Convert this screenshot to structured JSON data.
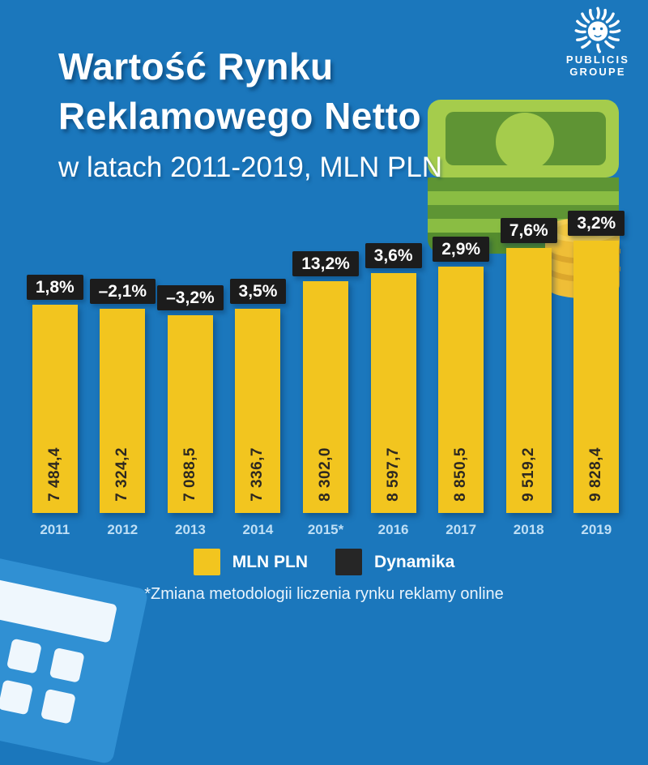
{
  "page": {
    "background_color": "#1B77BC"
  },
  "logo": {
    "line1": "PUBLICIS",
    "line2": "GROUPE",
    "icon": "publicis-lion-icon"
  },
  "header": {
    "title_line1": "Wartość Rynku",
    "title_line2": "Reklamowego Netto",
    "subtitle": "w latach 2011-2019, MLN PLN"
  },
  "chart_data": {
    "type": "bar",
    "title": "Wartość Rynku Reklamowego Netto",
    "subtitle": "w latach 2011-2019, MLN PLN",
    "categories": [
      "2011",
      "2012",
      "2013",
      "2014",
      "2015*",
      "2016",
      "2017",
      "2018",
      "2019"
    ],
    "series": [
      {
        "name": "MLN PLN",
        "values": [
          7484.4,
          7324.2,
          7088.5,
          7336.7,
          8302.0,
          8597.7,
          8850.5,
          9519.2,
          9828.4
        ],
        "value_labels": [
          "7 484,4",
          "7 324,2",
          "7 088,5",
          "7 336,7",
          "8 302,0",
          "8 597,7",
          "8 850,5",
          "9 519,2",
          "9 828,4"
        ],
        "color": "#F2C51F"
      },
      {
        "name": "Dynamika",
        "values": [
          1.8,
          -2.1,
          -3.2,
          3.5,
          13.2,
          3.6,
          2.9,
          7.6,
          3.2
        ],
        "value_labels": [
          "1,8%",
          "–2,1%",
          "–3,2%",
          "3,5%",
          "13,2%",
          "3,6%",
          "2,9%",
          "7,6%",
          "3,2%"
        ],
        "color": "#1C1C1C"
      }
    ],
    "ylim": [
      0,
      9828.4
    ],
    "grid": false,
    "legend_position": "bottom",
    "footnote": "*Zmiana metodologii liczenia rynku reklamy online"
  },
  "legend": {
    "items": [
      {
        "label": "MLN PLN",
        "color": "#F2C51F"
      },
      {
        "label": "Dynamika",
        "color": "#1C1C1C"
      }
    ]
  },
  "footnote": "*Zmiana metodologii liczenia rynku reklamy online",
  "colors": {
    "background": "#1B77BC",
    "bar_yellow": "#F2C51F",
    "dynamics_black": "#1C1C1C",
    "year_label": "#BFDFF5",
    "bar_value_text": "#2E2920",
    "money_green_light": "#A5CC4C",
    "money_green_dark": "#5F9434",
    "coin_gold": "#EFBE37",
    "calculator_blue": "#3090D3"
  }
}
